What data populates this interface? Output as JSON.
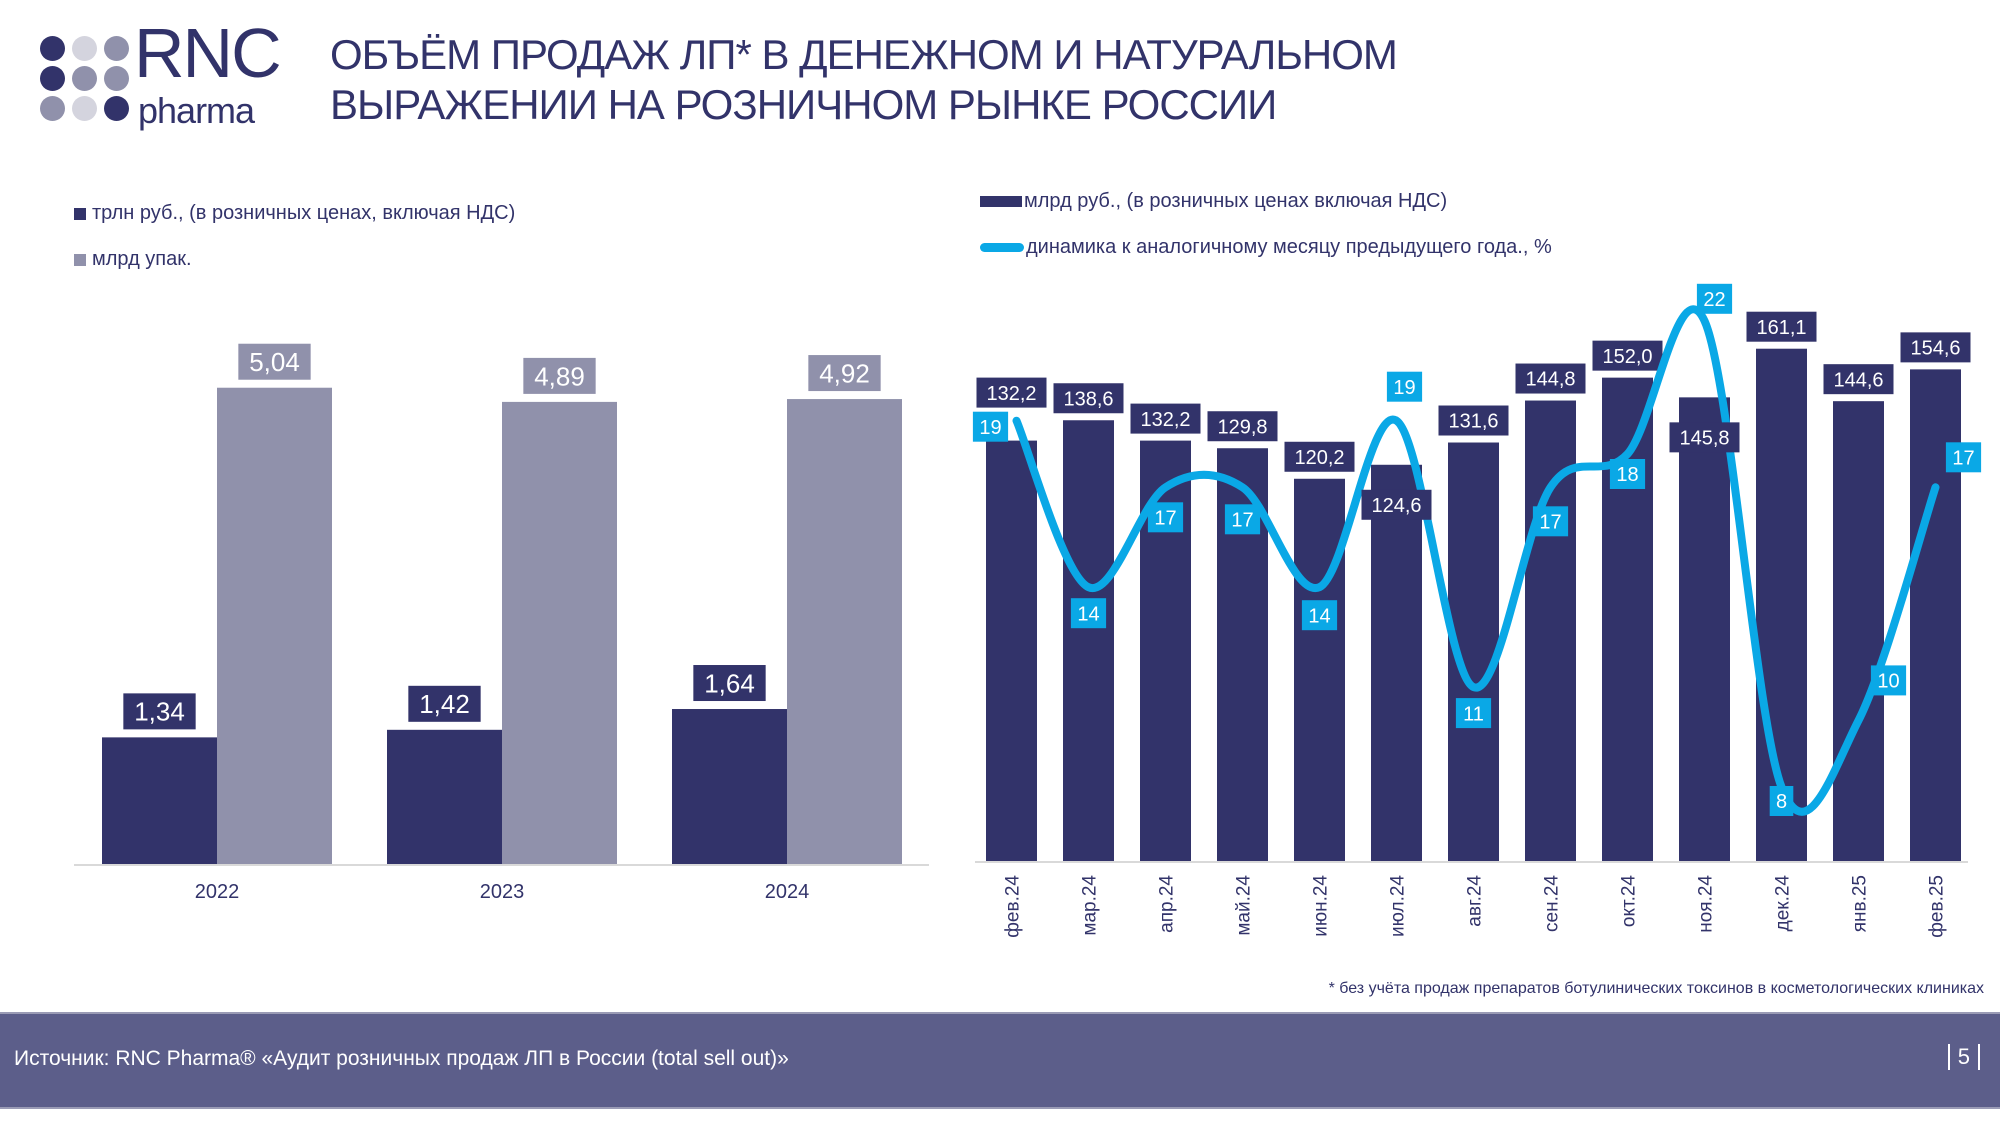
{
  "logo": {
    "text_main": "RNC",
    "text_sub": "pharma"
  },
  "title": [
    "ОБЪЁМ ПРОДАЖ ЛП* В ДЕНЕЖНОМ И НАТУРАЛЬНОМ",
    "ВЫРАЖЕНИИ НА РОЗНИЧНОМ РЫНКЕ РОССИИ"
  ],
  "colors": {
    "navy": "#32336a",
    "gray": "#9091ab",
    "cyan": "#0aa8e6",
    "footer": "#5c5e8a"
  },
  "chart_data": [
    {
      "type": "bar",
      "categories": [
        "2022",
        "2023",
        "2024"
      ],
      "series": [
        {
          "name": "трлн руб., (в розничных ценах, включая НДС)",
          "values": [
            1.34,
            1.42,
            1.64
          ],
          "labels": [
            "1,34",
            "1,42",
            "1,64"
          ],
          "color": "#32336a"
        },
        {
          "name": "млрд упак.",
          "values": [
            5.04,
            4.89,
            4.92
          ],
          "labels": [
            "5,04",
            "4,89",
            "4,92"
          ],
          "color": "#9091ab"
        }
      ],
      "legend": "top-left",
      "grid": false
    },
    {
      "type": "bar+line",
      "categories": [
        "фев.24",
        "мар.24",
        "апр.24",
        "май.24",
        "июн.24",
        "июл.24",
        "авг.24",
        "сен.24",
        "окт.24",
        "ноя.24",
        "дек.24",
        "янв.25",
        "фев.25"
      ],
      "series": [
        {
          "name": "млрд руб., (в розничных ценах включая НДС)",
          "type": "bar",
          "values": [
            132.2,
            138.6,
            132.2,
            129.8,
            120.2,
            124.6,
            131.6,
            144.8,
            152.0,
            145.8,
            161.1,
            144.6,
            154.6
          ],
          "labels": [
            "132,2",
            "138,6",
            "132,2",
            "129,8",
            "120,2",
            "124,6",
            "131,6",
            "144,8",
            "152,0",
            "145,8",
            "161,1",
            "144,6",
            "154,6"
          ],
          "color": "#32336a"
        },
        {
          "name": "динамика к аналогичному месяцу предыдущего года., %",
          "type": "line",
          "values": [
            19,
            14,
            17,
            17,
            14,
            19,
            11,
            17,
            18,
            22,
            8,
            10,
            17
          ],
          "labels": [
            "19",
            "14",
            "17",
            "17",
            "14",
            "19",
            "11",
            "17",
            "18",
            "22",
            "8",
            "10",
            "17"
          ],
          "color": "#0aa8e6"
        }
      ],
      "legend": "top-left",
      "grid": false
    }
  ],
  "footnote": "* без учёта продаж препаратов ботулинических токсинов в косметологических клиниках",
  "footer": {
    "source": "Источник: RNC Pharma® «Аудит розничных продаж ЛП в России (total sell out)»",
    "page": "5"
  }
}
